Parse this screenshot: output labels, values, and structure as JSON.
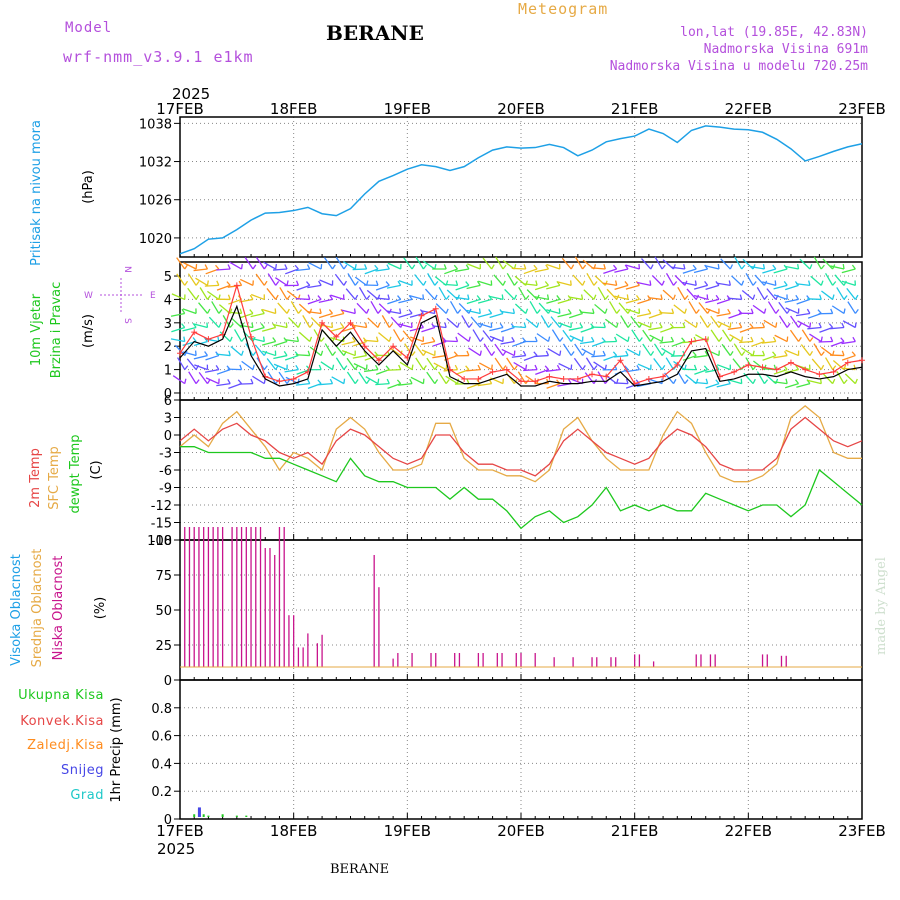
{
  "header": {
    "model_label": "Model",
    "model_name": "wrf-nmm_v3.9.1 e1km",
    "title": "BERANE",
    "meteogram_label": "Meteogram",
    "lonlat": "lon,lat (19.85E, 42.83N)",
    "elevation": "Nadmorska Visina 691m",
    "model_elevation": "Nadmorska Visina u modelu 720.25m",
    "footer_station": "BERANE",
    "watermark": "made by Angel"
  },
  "colors": {
    "pressure": "#1ea0e6",
    "temp2m": "#e64646",
    "sfc_temp": "#e6aa46",
    "dewpt": "#1ec81e",
    "wind_speed": "#000000",
    "gust": "#ff3c3c",
    "high_cloud": "#1ea0e6",
    "mid_cloud": "#e6aa46",
    "low_cloud": "#c8148c",
    "ukupna": "#1ec81e",
    "konvek": "#e64646",
    "zaledj": "#ff8c1e",
    "snijeg": "#4646e6",
    "grad": "#1ec8c8",
    "label_purple": "#b450dc"
  },
  "chart_data": [
    {
      "type": "line",
      "panel": "pressure",
      "year_label": "2025",
      "x_tick_labels": [
        "17FEB",
        "18FEB",
        "19FEB",
        "20FEB",
        "21FEB",
        "22FEB",
        "23FEB"
      ],
      "x_range_hours": [
        0,
        144
      ],
      "ylabel": "(hPa)",
      "side_label": "Pritisak na nivou mora",
      "ylim": [
        1017,
        1039
      ],
      "yticks": [
        1020,
        1026,
        1032,
        1038
      ],
      "grid": true,
      "series": [
        {
          "name": "Pritisak na nivou mora",
          "x": [
            0,
            3,
            6,
            9,
            12,
            15,
            18,
            21,
            24,
            27,
            30,
            33,
            36,
            39,
            42,
            45,
            48,
            51,
            54,
            57,
            60,
            63,
            66,
            69,
            72,
            75,
            78,
            81,
            84,
            87,
            90,
            93,
            96,
            99,
            102,
            105,
            108,
            111,
            114,
            117,
            120,
            123,
            126,
            129,
            132,
            135,
            138,
            141,
            144
          ],
          "values": [
            1017.5,
            1018.3,
            1019.8,
            1020.0,
            1021.3,
            1022.8,
            1023.9,
            1024.0,
            1024.3,
            1024.8,
            1023.8,
            1023.5,
            1024.6,
            1026.9,
            1028.9,
            1029.8,
            1030.8,
            1031.5,
            1031.2,
            1030.6,
            1031.2,
            1032.6,
            1033.8,
            1034.3,
            1034.1,
            1034.2,
            1034.7,
            1034.2,
            1032.9,
            1033.8,
            1035.1,
            1035.6,
            1036.0,
            1037.1,
            1036.4,
            1035.0,
            1036.9,
            1037.6,
            1037.4,
            1037.1,
            1037.0,
            1036.6,
            1035.5,
            1034.0,
            1032.1,
            1032.8,
            1033.6,
            1034.3,
            1034.8
          ]
        }
      ]
    },
    {
      "type": "line",
      "panel": "wind",
      "ylabel": "(m/s)",
      "side_label_1": "10m Vjetar",
      "side_label_2": "Brzina i Pravac",
      "compass": {
        "w": "W",
        "n": "N",
        "e": "E",
        "s": "S"
      },
      "ylim": [
        -0.3,
        5.6
      ],
      "yticks": [
        0,
        1,
        2,
        3,
        4,
        5
      ],
      "grid": true,
      "series": [
        {
          "name": "Brzina",
          "x": [
            0,
            3,
            6,
            9,
            12,
            15,
            18,
            21,
            24,
            27,
            30,
            33,
            36,
            39,
            42,
            45,
            48,
            51,
            54,
            57,
            60,
            63,
            66,
            69,
            72,
            75,
            78,
            81,
            84,
            87,
            90,
            93,
            96,
            99,
            102,
            105,
            108,
            111,
            114,
            117,
            120,
            123,
            126,
            129,
            132,
            135,
            138,
            141,
            144
          ],
          "values": [
            1.5,
            2.2,
            2.0,
            2.3,
            3.7,
            1.6,
            0.6,
            0.3,
            0.4,
            0.6,
            2.7,
            2.0,
            2.6,
            1.8,
            1.2,
            1.8,
            1.2,
            3.0,
            3.3,
            0.7,
            0.4,
            0.4,
            0.6,
            0.8,
            0.3,
            0.3,
            0.5,
            0.4,
            0.4,
            0.5,
            0.5,
            0.9,
            0.3,
            0.4,
            0.5,
            0.8,
            1.8,
            1.9,
            0.5,
            0.6,
            0.8,
            0.8,
            0.7,
            0.9,
            0.7,
            0.6,
            0.7,
            1.0,
            1.1
          ]
        },
        {
          "name": "Udar",
          "x": [
            0,
            3,
            6,
            9,
            12,
            15,
            18,
            21,
            24,
            27,
            30,
            33,
            36,
            39,
            42,
            45,
            48,
            51,
            54,
            57,
            60,
            63,
            66,
            69,
            72,
            75,
            78,
            81,
            84,
            87,
            90,
            93,
            96,
            99,
            102,
            105,
            108,
            111,
            114,
            117,
            120,
            123,
            126,
            129,
            132,
            135,
            138,
            141,
            144
          ],
          "values": [
            1.7,
            2.6,
            2.3,
            2.5,
            4.6,
            2.4,
            0.7,
            0.5,
            0.6,
            0.9,
            3.0,
            2.4,
            3.0,
            2.0,
            1.4,
            2.0,
            1.5,
            3.3,
            3.6,
            1.0,
            0.6,
            0.6,
            0.9,
            1.0,
            0.5,
            0.5,
            0.7,
            0.6,
            0.6,
            0.8,
            0.7,
            1.4,
            0.4,
            0.6,
            0.7,
            1.2,
            2.2,
            2.3,
            0.7,
            0.9,
            1.2,
            1.1,
            1.0,
            1.3,
            1.0,
            0.8,
            0.9,
            1.3,
            1.4
          ]
        }
      ]
    },
    {
      "type": "line",
      "panel": "temperature",
      "ylabel": "(C)",
      "side_label_1": "2m Temp",
      "side_label_2": "SFC Temp",
      "side_label_3": "dewpt Temp",
      "ylim": [
        -18,
        6
      ],
      "yticks": [
        -18,
        -15,
        -12,
        -9,
        -6,
        -3,
        0,
        3,
        6
      ],
      "grid": true,
      "series": [
        {
          "name": "2m Temp",
          "x": [
            0,
            3,
            6,
            9,
            12,
            15,
            18,
            21,
            24,
            27,
            30,
            33,
            36,
            39,
            42,
            45,
            48,
            51,
            54,
            57,
            60,
            63,
            66,
            69,
            72,
            75,
            78,
            81,
            84,
            87,
            90,
            93,
            96,
            99,
            102,
            105,
            108,
            111,
            114,
            117,
            120,
            123,
            126,
            129,
            132,
            135,
            138,
            141,
            144
          ],
          "values": [
            -1,
            1,
            -1,
            1,
            2,
            0,
            -1,
            -3,
            -4,
            -3,
            -5,
            -1,
            1,
            0,
            -2,
            -4,
            -5,
            -4,
            0,
            0,
            -3,
            -5,
            -5,
            -6,
            -6,
            -7,
            -5,
            -1,
            1,
            -1,
            -3,
            -4,
            -5,
            -4,
            -1,
            1,
            0,
            -2,
            -5,
            -6,
            -6,
            -6,
            -4,
            1,
            3,
            1,
            -1,
            -2,
            -1
          ]
        },
        {
          "name": "SFC Temp",
          "x": [
            0,
            3,
            6,
            9,
            12,
            15,
            18,
            21,
            24,
            27,
            30,
            33,
            36,
            39,
            42,
            45,
            48,
            51,
            54,
            57,
            60,
            63,
            66,
            69,
            72,
            75,
            78,
            81,
            84,
            87,
            90,
            93,
            96,
            99,
            102,
            105,
            108,
            111,
            114,
            117,
            120,
            123,
            126,
            129,
            132,
            135,
            138,
            141,
            144
          ],
          "values": [
            -2,
            0,
            -2,
            2,
            4,
            1,
            -2,
            -6,
            -3,
            -4,
            -6,
            1,
            3,
            1,
            -3,
            -6,
            -6,
            -5,
            2,
            2,
            -4,
            -6,
            -6,
            -7,
            -7,
            -8,
            -6,
            1,
            3,
            -1,
            -4,
            -6,
            -6,
            -6,
            0,
            4,
            2,
            -3,
            -7,
            -8,
            -8,
            -7,
            -5,
            3,
            5,
            3,
            -3,
            -4,
            -4
          ]
        },
        {
          "name": "dewpt Temp",
          "x": [
            0,
            3,
            6,
            9,
            12,
            15,
            18,
            21,
            24,
            27,
            30,
            33,
            36,
            39,
            42,
            45,
            48,
            51,
            54,
            57,
            60,
            63,
            66,
            69,
            72,
            75,
            78,
            81,
            84,
            87,
            90,
            93,
            96,
            99,
            102,
            105,
            108,
            111,
            114,
            117,
            120,
            123,
            126,
            129,
            132,
            135,
            138,
            141,
            144
          ],
          "values": [
            -2,
            -2,
            -3,
            -3,
            -3,
            -3,
            -4,
            -4,
            -5,
            -6,
            -7,
            -8,
            -4,
            -7,
            -8,
            -8,
            -9,
            -9,
            -9,
            -11,
            -9,
            -11,
            -11,
            -13,
            -16,
            -14,
            -13,
            -15,
            -14,
            -12,
            -9,
            -13,
            -12,
            -13,
            -12,
            -13,
            -13,
            -10,
            -11,
            -12,
            -13,
            -12,
            -12,
            -14,
            -12,
            -6,
            -8,
            -10,
            -12
          ]
        }
      ]
    },
    {
      "type": "bar",
      "panel": "cloud",
      "ylabel": "(%)",
      "side_label_1": "Visoka Oblacnost",
      "side_label_2": "Srednja Oblacnost",
      "side_label_3": "Niska Oblacnost",
      "ylim": [
        0,
        100
      ],
      "yticks": [
        0,
        25,
        50,
        75,
        100
      ],
      "grid": true,
      "series": [
        {
          "name": "Niska Oblacnost",
          "x": [
            1,
            2,
            3,
            4,
            5,
            6,
            7,
            8,
            9,
            11,
            12,
            13,
            14,
            15,
            16,
            17,
            18,
            19,
            20,
            21,
            22,
            23,
            24,
            25,
            26,
            27,
            29,
            30,
            41,
            42,
            45,
            46,
            49,
            53,
            54,
            58,
            59,
            63,
            64,
            67,
            68,
            71,
            72,
            75,
            79,
            83,
            87,
            88,
            91,
            92,
            96,
            97,
            100,
            109,
            110,
            112,
            113,
            123,
            124,
            127,
            128
          ],
          "values": [
            100,
            100,
            100,
            100,
            100,
            100,
            100,
            100,
            100,
            100,
            100,
            100,
            100,
            100,
            100,
            100,
            85,
            85,
            80,
            100,
            100,
            37,
            37,
            14,
            14,
            24,
            17,
            23,
            80,
            57,
            6,
            10,
            10,
            10,
            10,
            10,
            10,
            10,
            10,
            10,
            10,
            10,
            10,
            10,
            7,
            7,
            7,
            7,
            7,
            7,
            9,
            9,
            4,
            9,
            9,
            9,
            9,
            9,
            9,
            8,
            8
          ]
        }
      ]
    },
    {
      "type": "bar",
      "panel": "precip",
      "ylabel": "1hr Precip (mm)",
      "legend": [
        "Ukupna Kisa",
        "Konvek.Kisa",
        "Zaledj.Kisa",
        "Snijeg",
        "Grad"
      ],
      "ylim": [
        0,
        1
      ],
      "yticks": [
        0,
        0.2,
        0.4,
        0.6,
        0.8
      ],
      "grid": true,
      "series": [
        {
          "name": "Ukupna Kisa",
          "x": [
            3,
            4,
            5,
            6,
            9,
            12,
            14
          ],
          "values": [
            0.02,
            0.06,
            0.02,
            0.01,
            0.02,
            0.01,
            0.01
          ]
        },
        {
          "name": "Snijeg",
          "x": [
            4
          ],
          "values": [
            0.07
          ]
        }
      ]
    }
  ]
}
